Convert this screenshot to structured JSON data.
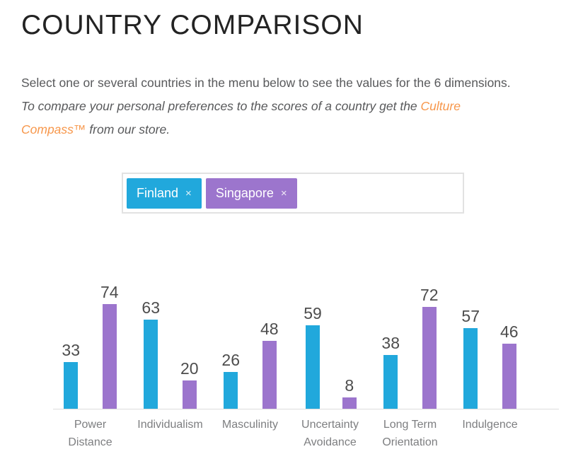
{
  "page": {
    "title": "COUNTRY COMPARISON"
  },
  "intro": {
    "line1": "Select one or several countries in the menu below to see the values for the 6 dimensions.",
    "line2_text": "To compare your personal preferences to the scores of a country get the ",
    "line2_link": "Culture",
    "line3_link": "Compass™",
    "line3_text": " from our store.",
    "text_color": "#58595B",
    "link_color": "#F7974B"
  },
  "selection": {
    "remove_symbol": "×",
    "tags": [
      {
        "label": "Finland",
        "color": "#21A8DC"
      },
      {
        "label": "Singapore",
        "color": "#9C75CD"
      }
    ]
  },
  "chart_data": {
    "type": "bar",
    "title": "",
    "categories": [
      "Power Distance",
      "Individualism",
      "Masculinity",
      "Uncertainty Avoidance",
      "Long Term Orientation",
      "Indulgence"
    ],
    "category_label_lines": [
      [
        "Power",
        "Distance"
      ],
      [
        "Individualism"
      ],
      [
        "Masculinity"
      ],
      [
        "Uncertainty",
        "Avoidance"
      ],
      [
        "Long Term",
        "Orientation"
      ],
      [
        "Indulgence"
      ]
    ],
    "series": [
      {
        "name": "Finland",
        "color": "#21A8DC",
        "values": [
          33,
          63,
          26,
          59,
          38,
          57
        ]
      },
      {
        "name": "Singapore",
        "color": "#9C75CD",
        "values": [
          74,
          20,
          48,
          8,
          72,
          46
        ]
      }
    ],
    "ylim": [
      0,
      100
    ],
    "value_labels_shown": true,
    "grid": false,
    "legend_position": "none",
    "axis_line_color": "#DDDDDD",
    "value_label_color": "#4D4D4D",
    "category_label_color": "#7D7E80"
  }
}
